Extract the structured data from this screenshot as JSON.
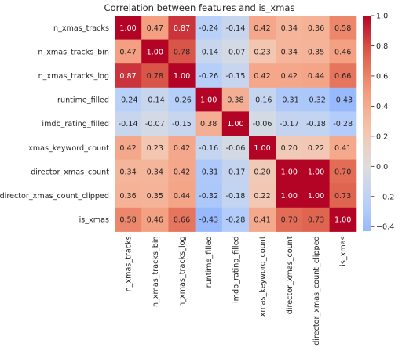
{
  "chart_data": {
    "type": "heatmap",
    "title": "Correlation between features and is_xmas",
    "row_labels": [
      "n_xmas_tracks",
      "n_xmas_tracks_bin",
      "n_xmas_tracks_log",
      "runtime_filled",
      "imdb_rating_filled",
      "xmas_keyword_count",
      "director_xmas_count",
      "director_xmas_count_clipped",
      "is_xmas"
    ],
    "column_labels": [
      "n_xmas_tracks",
      "n_xmas_tracks_bin",
      "n_xmas_tracks_log",
      "runtime_filled",
      "imdb_rating_filled",
      "xmas_keyword_count",
      "director_xmas_count",
      "director_xmas_count_clipped",
      "is_xmas"
    ],
    "values": [
      [
        1.0,
        0.47,
        0.87,
        -0.24,
        -0.14,
        0.42,
        0.34,
        0.36,
        0.58
      ],
      [
        0.47,
        1.0,
        0.78,
        -0.14,
        -0.07,
        0.23,
        0.34,
        0.35,
        0.46
      ],
      [
        0.87,
        0.78,
        1.0,
        -0.26,
        -0.15,
        0.42,
        0.42,
        0.44,
        0.66
      ],
      [
        -0.24,
        -0.14,
        -0.26,
        1.0,
        0.38,
        -0.16,
        -0.31,
        -0.32,
        -0.43
      ],
      [
        -0.14,
        -0.07,
        -0.15,
        0.38,
        1.0,
        -0.06,
        -0.17,
        -0.18,
        -0.28
      ],
      [
        0.42,
        0.23,
        0.42,
        -0.16,
        -0.06,
        1.0,
        0.2,
        0.22,
        0.41
      ],
      [
        0.34,
        0.34,
        0.42,
        -0.31,
        -0.17,
        0.2,
        1.0,
        1.0,
        0.7
      ],
      [
        0.36,
        0.35,
        0.44,
        -0.32,
        -0.18,
        0.22,
        1.0,
        1.0,
        0.73
      ],
      [
        0.58,
        0.46,
        0.66,
        -0.43,
        -0.28,
        0.41,
        0.7,
        0.73,
        1.0
      ]
    ],
    "value_format": "0.00",
    "colormap": "coolwarm",
    "center": 0.0,
    "vmin": -0.43,
    "vmax": 1.0,
    "colorbar_ticks": [
      1.0,
      0.8,
      0.6,
      0.4,
      0.2,
      0.0,
      -0.2,
      -0.4
    ],
    "colorbar_tick_labels": [
      "1.0",
      "0.8",
      "0.6",
      "0.4",
      "0.2",
      "0.0",
      "−0.2",
      "−0.4"
    ]
  }
}
